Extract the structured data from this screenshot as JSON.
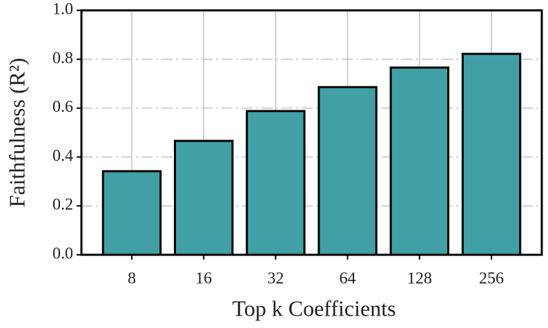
{
  "chart_data": {
    "type": "bar",
    "xlabel": "Top k Coefficients",
    "ylabel": "Faithfulness (R²)",
    "categories": [
      "8",
      "16",
      "32",
      "64",
      "128",
      "256"
    ],
    "values": [
      0.342,
      0.466,
      0.588,
      0.686,
      0.766,
      0.822
    ],
    "color": "#40a0a6",
    "ylim": [
      0,
      1.0
    ],
    "yticks": [
      {
        "value": 0,
        "label": "0.0"
      },
      0.2,
      0.4,
      0.6,
      0.8,
      {
        "value": 1,
        "label": "1.0"
      }
    ],
    "grid": true
  }
}
